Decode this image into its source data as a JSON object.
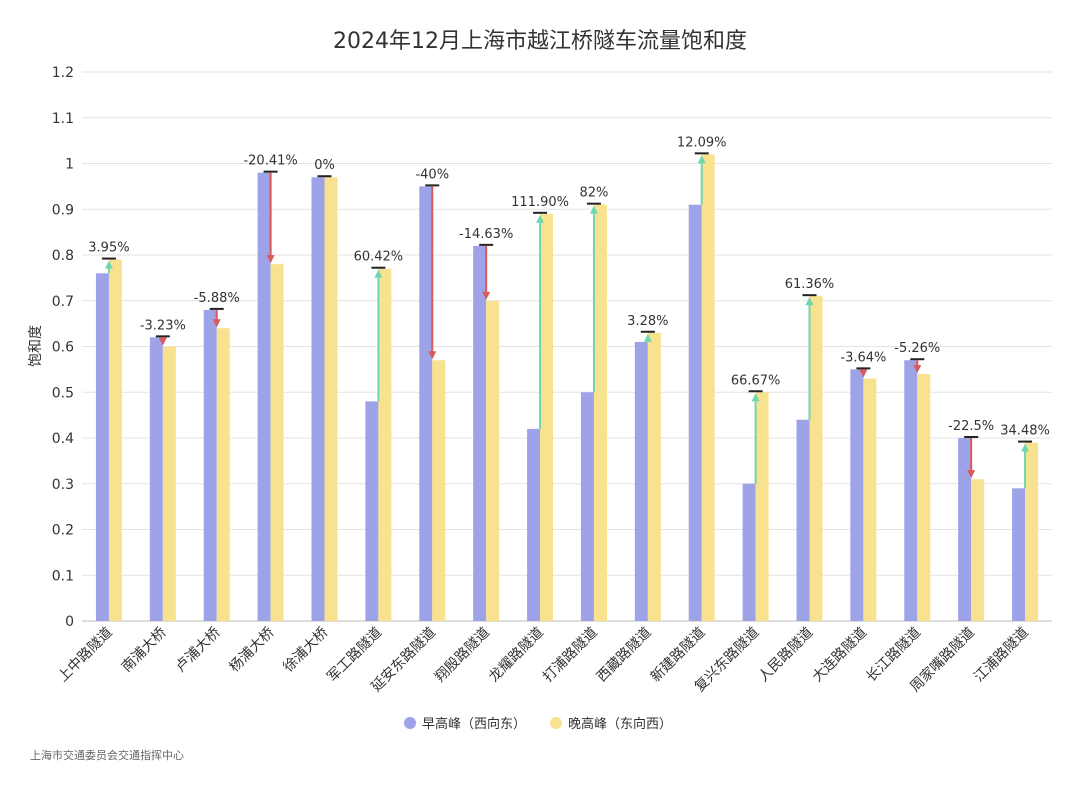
{
  "chart_data": {
    "type": "bar",
    "title": "2024年12月上海市越江桥隧车流量饱和度",
    "ylabel": "饱和度",
    "xlabel": "",
    "ylim": [
      0,
      1.2
    ],
    "yticks": [
      "0",
      "0.1",
      "0.2",
      "0.3",
      "0.4",
      "0.5",
      "0.6",
      "0.7",
      "0.8",
      "0.9",
      "1",
      "1.1",
      "1.2"
    ],
    "grid": true,
    "legend_position": "bottom",
    "categories": [
      "上中路隧道",
      "南浦大桥",
      "卢浦大桥",
      "杨浦大桥",
      "徐浦大桥",
      "军工路隧道",
      "延安东路隧道",
      "翔殷路隧道",
      "龙耀路隧道",
      "打浦路隧道",
      "西藏路隧道",
      "新建路隧道",
      "复兴东路隧道",
      "人民路隧道",
      "大连路隧道",
      "长江路隧道",
      "周家嘴路隧道",
      "江浦路隧道"
    ],
    "series": [
      {
        "name": "早高峰（西向东）",
        "color": "#9ea3e8",
        "values": [
          0.76,
          0.62,
          0.68,
          0.98,
          0.97,
          0.48,
          0.95,
          0.82,
          0.42,
          0.5,
          0.61,
          0.91,
          0.3,
          0.44,
          0.55,
          0.57,
          0.4,
          0.29
        ]
      },
      {
        "name": "晚高峰（东向西）",
        "color": "#f9e28f",
        "values": [
          0.79,
          0.6,
          0.64,
          0.78,
          0.97,
          0.77,
          0.57,
          0.7,
          0.89,
          0.91,
          0.63,
          1.02,
          0.5,
          0.71,
          0.53,
          0.54,
          0.31,
          0.39
        ]
      }
    ],
    "change_labels": [
      "3.95%",
      "-3.23%",
      "-5.88%",
      "-20.41%",
      "0%",
      "60.42%",
      "-40%",
      "-14.63%",
      "111.90%",
      "82%",
      "3.28%",
      "12.09%",
      "66.67%",
      "61.36%",
      "-3.64%",
      "-5.26%",
      "-22.5%",
      "34.48%"
    ],
    "increase_color": "#6fd6b0",
    "decrease_color": "#d9585a"
  },
  "source": "上海市交通委员会交通指挥中心"
}
